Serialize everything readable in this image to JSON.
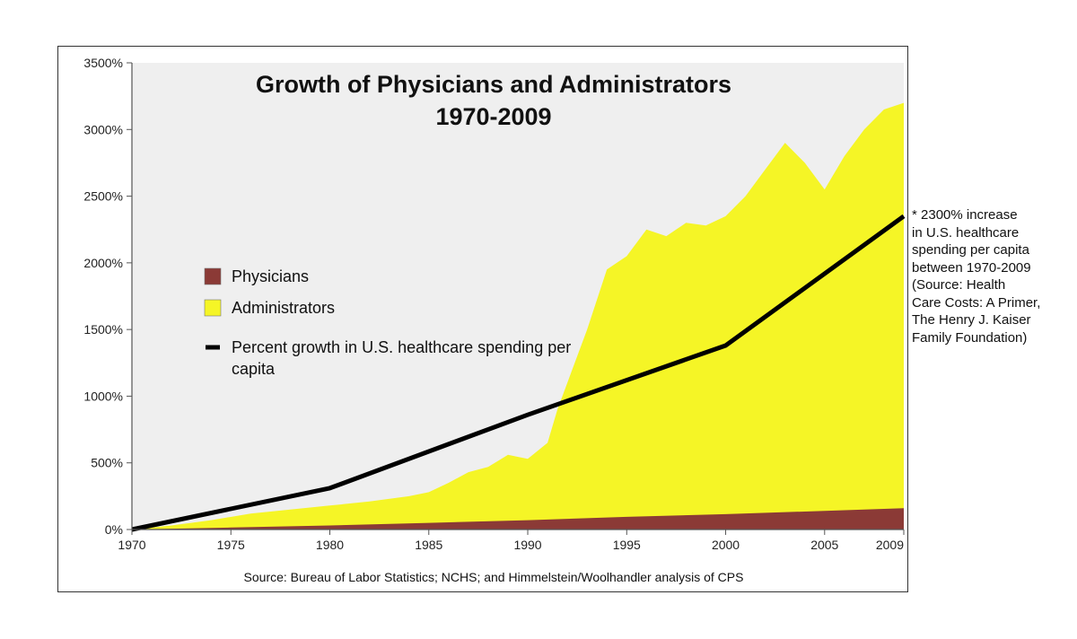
{
  "chart_data": {
    "type": "area",
    "title": "Growth of Physicians and Administrators",
    "subtitle": "1970-2009",
    "source": "Source: Bureau of Labor Statistics; NCHS; and Himmelstein/Woolhandler analysis of CPS",
    "xlim": [
      1970,
      2009
    ],
    "ylim": [
      0,
      3500
    ],
    "x_ticks": [
      "1970",
      "1975",
      "1980",
      "1985",
      "1990",
      "1995",
      "2000",
      "2005",
      "2009"
    ],
    "y_ticks": [
      "0%",
      "500%",
      "1000%",
      "1500%",
      "2000%",
      "2500%",
      "3000%",
      "3500%"
    ],
    "grid": false,
    "legend_position": "left-middle",
    "legend": [
      {
        "label": "Physicians",
        "color": "#8b3a36",
        "shape": "square"
      },
      {
        "label": "Administrators",
        "color": "#f5f526",
        "shape": "square"
      },
      {
        "label": "Percent growth in U.S. healthcare spending per capita",
        "color": "#000000",
        "shape": "line"
      }
    ],
    "series": [
      {
        "name": "Administrators",
        "kind": "area",
        "color": "#f5f526",
        "x": [
          1970,
          1972,
          1974,
          1976,
          1978,
          1980,
          1982,
          1984,
          1985,
          1986,
          1987,
          1988,
          1989,
          1990,
          1991,
          1991.5,
          1992,
          1993,
          1994,
          1995,
          1996,
          1997,
          1998,
          1999,
          2000,
          2001,
          2002,
          2003,
          2004,
          2005,
          2006,
          2007,
          2008,
          2009
        ],
        "y": [
          0,
          30,
          70,
          120,
          150,
          180,
          210,
          250,
          280,
          350,
          430,
          470,
          560,
          530,
          650,
          900,
          1100,
          1500,
          1950,
          2050,
          2250,
          2200,
          2300,
          2280,
          2350,
          2500,
          2700,
          2900,
          2750,
          2550,
          2800,
          3000,
          3150,
          3200
        ]
      },
      {
        "name": "Physicians",
        "kind": "area",
        "color": "#8b3a36",
        "x": [
          1970,
          1975,
          1980,
          1985,
          1990,
          1995,
          2000,
          2005,
          2009
        ],
        "y": [
          0,
          15,
          30,
          50,
          70,
          95,
          115,
          140,
          160
        ]
      },
      {
        "name": "Percent growth in U.S. healthcare spending per capita",
        "kind": "line",
        "color": "#000000",
        "x": [
          1970,
          1980,
          1990,
          2000,
          2009
        ],
        "y": [
          0,
          310,
          860,
          1380,
          2350
        ]
      }
    ]
  },
  "annotation": "* 2300% increase\nin U.S. healthcare\nspending per capita\nbetween 1970-2009\n(Source: Health\nCare Costs: A Primer,\nThe Henry J. Kaiser\nFamily Foundation)"
}
